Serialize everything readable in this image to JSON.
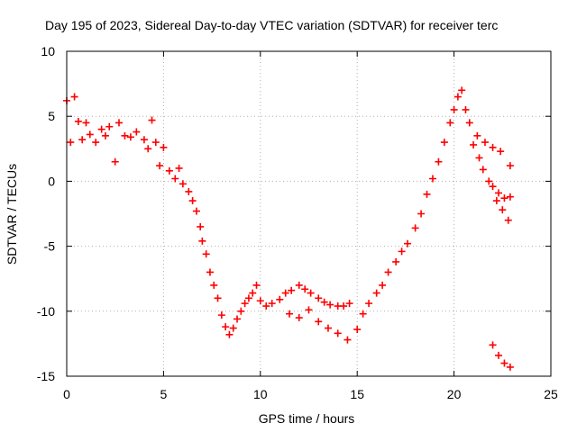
{
  "chart_data": {
    "type": "scatter",
    "title": "Day 195 of 2023, Sidereal Day-to-day VTEC variation (SDTVAR) for receiver terc",
    "xlabel": "GPS time / hours",
    "ylabel": "SDTVAR / TECUs",
    "xlim": [
      0,
      25
    ],
    "ylim": [
      -15,
      10
    ],
    "xticks": [
      0,
      5,
      10,
      15,
      20,
      25
    ],
    "yticks": [
      -15,
      -10,
      -5,
      0,
      5,
      10
    ],
    "grid": true,
    "marker": "+",
    "color": "#ff0000",
    "series": [
      {
        "name": "SDTVAR",
        "points": [
          [
            0.0,
            6.2
          ],
          [
            0.2,
            3.0
          ],
          [
            0.4,
            6.5
          ],
          [
            0.6,
            4.6
          ],
          [
            0.8,
            3.2
          ],
          [
            1.0,
            4.5
          ],
          [
            1.2,
            3.6
          ],
          [
            1.5,
            3.0
          ],
          [
            1.8,
            4.0
          ],
          [
            2.0,
            3.5
          ],
          [
            2.2,
            4.2
          ],
          [
            2.5,
            1.5
          ],
          [
            2.7,
            4.5
          ],
          [
            3.0,
            3.5
          ],
          [
            3.3,
            3.4
          ],
          [
            3.6,
            3.8
          ],
          [
            4.0,
            3.2
          ],
          [
            4.2,
            2.5
          ],
          [
            4.4,
            4.7
          ],
          [
            4.6,
            3.0
          ],
          [
            4.8,
            1.2
          ],
          [
            5.0,
            2.6
          ],
          [
            5.3,
            0.8
          ],
          [
            5.6,
            0.2
          ],
          [
            5.8,
            1.0
          ],
          [
            6.0,
            -0.2
          ],
          [
            6.3,
            -0.8
          ],
          [
            6.5,
            -1.5
          ],
          [
            6.7,
            -2.3
          ],
          [
            6.9,
            -3.5
          ],
          [
            7.0,
            -4.6
          ],
          [
            7.2,
            -5.6
          ],
          [
            7.4,
            -7.0
          ],
          [
            7.6,
            -8.0
          ],
          [
            7.8,
            -9.0
          ],
          [
            8.0,
            -10.3
          ],
          [
            8.2,
            -11.2
          ],
          [
            8.4,
            -11.8
          ],
          [
            8.6,
            -11.3
          ],
          [
            8.8,
            -10.6
          ],
          [
            9.0,
            -10.0
          ],
          [
            9.2,
            -9.4
          ],
          [
            9.4,
            -9.0
          ],
          [
            9.6,
            -8.6
          ],
          [
            9.8,
            -8.0
          ],
          [
            10.0,
            -9.2
          ],
          [
            10.3,
            -9.6
          ],
          [
            10.6,
            -9.4
          ],
          [
            11.0,
            -9.1
          ],
          [
            11.3,
            -8.6
          ],
          [
            11.6,
            -8.4
          ],
          [
            12.0,
            -8.0
          ],
          [
            12.3,
            -8.3
          ],
          [
            12.6,
            -8.6
          ],
          [
            13.0,
            -9.0
          ],
          [
            13.3,
            -9.3
          ],
          [
            13.6,
            -9.5
          ],
          [
            14.0,
            -9.6
          ],
          [
            14.3,
            -9.6
          ],
          [
            14.6,
            -9.4
          ],
          [
            11.5,
            -10.2
          ],
          [
            12.0,
            -10.5
          ],
          [
            12.5,
            -9.9
          ],
          [
            13.0,
            -10.8
          ],
          [
            13.5,
            -11.3
          ],
          [
            14.0,
            -11.7
          ],
          [
            14.5,
            -12.2
          ],
          [
            15.0,
            -11.4
          ],
          [
            15.3,
            -10.2
          ],
          [
            15.6,
            -9.4
          ],
          [
            16.0,
            -8.6
          ],
          [
            16.3,
            -8.0
          ],
          [
            16.6,
            -7.0
          ],
          [
            17.0,
            -6.2
          ],
          [
            17.3,
            -5.4
          ],
          [
            17.6,
            -4.8
          ],
          [
            18.0,
            -3.6
          ],
          [
            18.3,
            -2.5
          ],
          [
            18.6,
            -1.0
          ],
          [
            18.9,
            0.2
          ],
          [
            19.2,
            1.5
          ],
          [
            19.5,
            3.0
          ],
          [
            19.8,
            4.5
          ],
          [
            20.0,
            5.5
          ],
          [
            20.2,
            6.5
          ],
          [
            20.4,
            7.0
          ],
          [
            20.6,
            5.5
          ],
          [
            20.8,
            4.5
          ],
          [
            21.0,
            2.8
          ],
          [
            21.3,
            1.8
          ],
          [
            21.5,
            0.9
          ],
          [
            21.8,
            0.0
          ],
          [
            22.0,
            -0.4
          ],
          [
            22.3,
            -0.9
          ],
          [
            22.6,
            -1.3
          ],
          [
            22.9,
            -1.2
          ],
          [
            21.2,
            3.5
          ],
          [
            21.6,
            3.0
          ],
          [
            22.0,
            2.6
          ],
          [
            22.4,
            2.3
          ],
          [
            22.2,
            -1.5
          ],
          [
            22.5,
            -2.2
          ],
          [
            22.8,
            -3.0
          ],
          [
            22.9,
            1.2
          ],
          [
            22.0,
            -12.6
          ],
          [
            22.3,
            -13.4
          ],
          [
            22.6,
            -14.0
          ],
          [
            22.9,
            -14.3
          ]
        ]
      }
    ]
  }
}
